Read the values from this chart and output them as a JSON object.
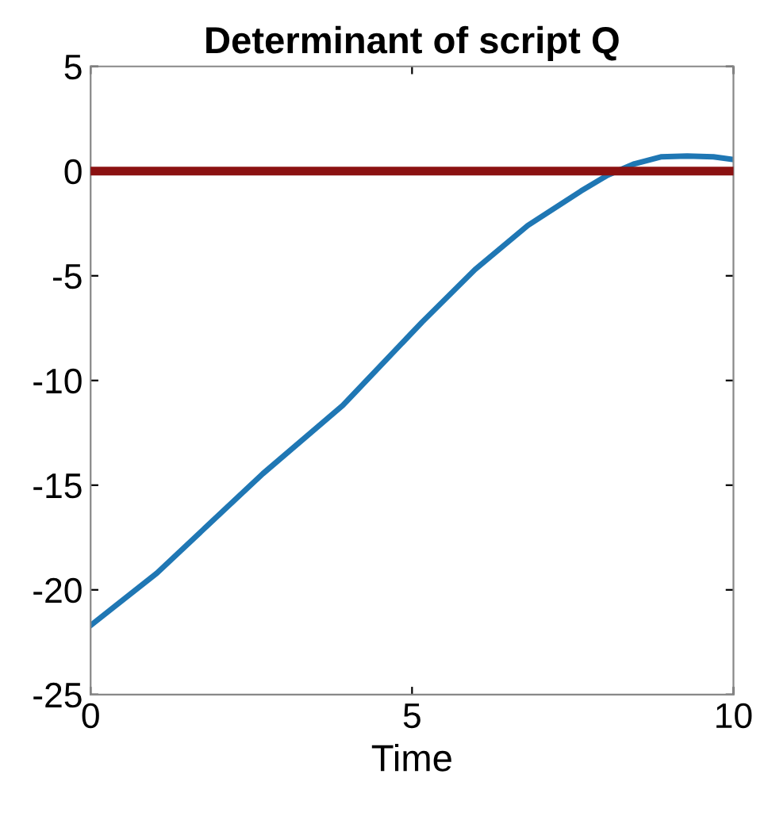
{
  "chart_data": {
    "type": "line",
    "title": "Determinant of script Q",
    "xlabel": "Time",
    "x": [
      0,
      1.03,
      2.68,
      3.92,
      5.16,
      5.98,
      6.8,
      7.63,
      8.04,
      8.46,
      8.87,
      9.28,
      9.69,
      10
    ],
    "series": [
      {
        "color": "#1f77b4",
        "values": [
          -21.7,
          -19.2,
          -14.45,
          -11.2,
          -7.2,
          -4.7,
          -2.6,
          -0.95,
          -0.2,
          0.35,
          0.68,
          0.72,
          0.68,
          0.55
        ]
      }
    ],
    "xlim": [
      0,
      10
    ],
    "xticks": [
      0,
      5,
      10
    ],
    "ylim": [
      -25,
      5
    ],
    "yticks": [
      -25,
      -20,
      -15,
      -10,
      -5,
      0,
      5
    ],
    "ref_lines": [
      {
        "axis": "y",
        "value": 0,
        "color": "#8b1111"
      }
    ],
    "grid": false,
    "legend": false
  }
}
